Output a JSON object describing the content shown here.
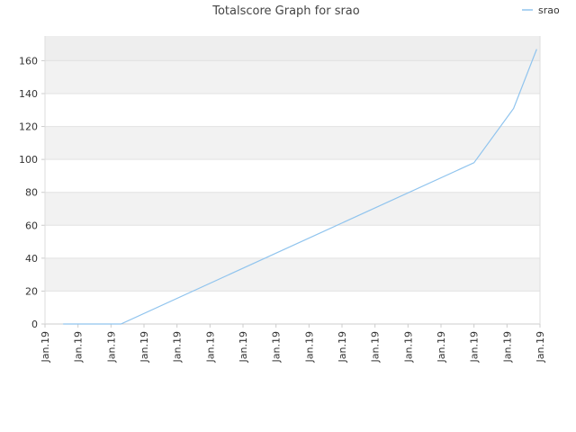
{
  "chart_data": {
    "type": "line",
    "title": "Totalscore Graph for srao",
    "x": [
      0.55,
      2.3,
      13.0,
      14.2,
      14.9
    ],
    "series": [
      {
        "name": "srao",
        "color": "#90c4ee",
        "values": [
          0,
          0,
          98,
          131,
          167
        ]
      }
    ],
    "xlim": [
      0,
      15
    ],
    "xticks": [
      {
        "value": 0,
        "label": "Jan.19"
      },
      {
        "value": 1,
        "label": "Jan.19"
      },
      {
        "value": 2,
        "label": "Jan.19"
      },
      {
        "value": 3,
        "label": "Jan.19"
      },
      {
        "value": 4,
        "label": "Jan.19"
      },
      {
        "value": 5,
        "label": "Jan.19"
      },
      {
        "value": 6,
        "label": "Jan.19"
      },
      {
        "value": 7,
        "label": "Jan.19"
      },
      {
        "value": 8,
        "label": "Jan.19"
      },
      {
        "value": 9,
        "label": "Jan.19"
      },
      {
        "value": 10,
        "label": "Jan.19"
      },
      {
        "value": 11,
        "label": "Jan.19"
      },
      {
        "value": 12,
        "label": "Jan.19"
      },
      {
        "value": 13,
        "label": "Jan.19"
      },
      {
        "value": 14,
        "label": "Jan.19"
      },
      {
        "value": 15,
        "label": "Jan.19"
      }
    ],
    "ylim": [
      0,
      175
    ],
    "yticks": [
      0,
      20,
      40,
      60,
      80,
      100,
      120,
      140,
      160
    ],
    "grid": true,
    "legend": "top-right"
  }
}
